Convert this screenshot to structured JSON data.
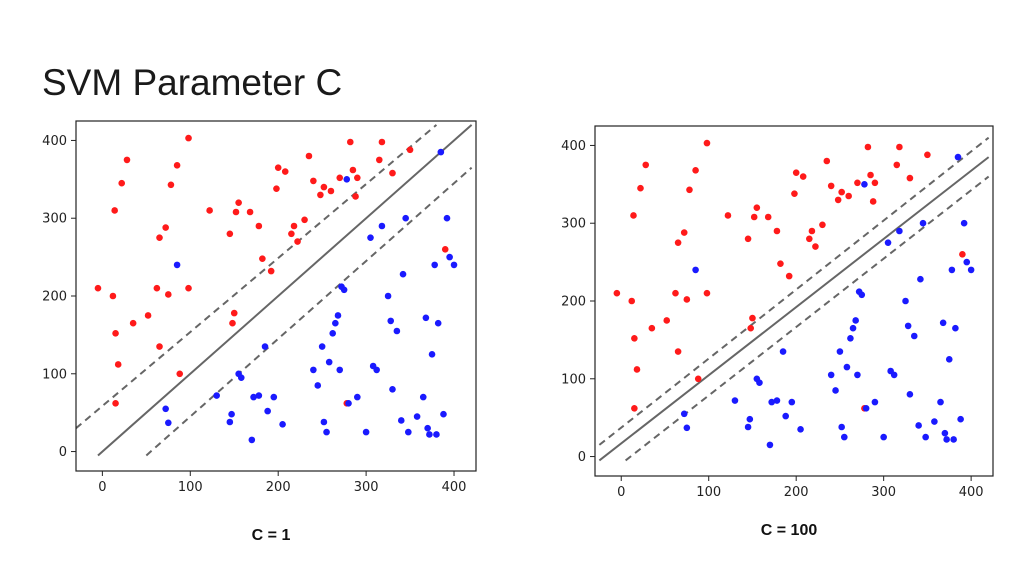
{
  "slide": {
    "title": "SVM Parameter C"
  },
  "colors": {
    "class_a": "#ff1a1a",
    "class_b": "#1a1aff",
    "line": "#666666",
    "frame": "#222222"
  },
  "chart_data": [
    {
      "type": "scatter",
      "caption": "C = 1",
      "xlim": [
        -30,
        425
      ],
      "ylim": [
        -25,
        425
      ],
      "xticks": [
        0,
        100,
        200,
        300,
        400
      ],
      "yticks": [
        0,
        100,
        200,
        300,
        400
      ],
      "grid": false,
      "series": [
        {
          "color": "#ff1a1a",
          "points": [
            [
              -5,
              210
            ],
            [
              12,
              200
            ],
            [
              15,
              152
            ],
            [
              18,
              112
            ],
            [
              15,
              62
            ],
            [
              14,
              310
            ],
            [
              22,
              345
            ],
            [
              28,
              375
            ],
            [
              35,
              165
            ],
            [
              52,
              175
            ],
            [
              62,
              210
            ],
            [
              65,
              275
            ],
            [
              65,
              135
            ],
            [
              72,
              288
            ],
            [
              78,
              343
            ],
            [
              85,
              368
            ],
            [
              75,
              202
            ],
            [
              98,
              403
            ],
            [
              98,
              210
            ],
            [
              88,
              100
            ],
            [
              122,
              310
            ],
            [
              145,
              280
            ],
            [
              148,
              165
            ],
            [
              150,
              178
            ],
            [
              152,
              308
            ],
            [
              155,
              320
            ],
            [
              168,
              308
            ],
            [
              178,
              290
            ],
            [
              182,
              248
            ],
            [
              192,
              232
            ],
            [
              198,
              338
            ],
            [
              200,
              365
            ],
            [
              208,
              360
            ],
            [
              215,
              280
            ],
            [
              218,
              290
            ],
            [
              222,
              270
            ],
            [
              230,
              298
            ],
            [
              235,
              380
            ],
            [
              240,
              348
            ],
            [
              248,
              330
            ],
            [
              252,
              340
            ],
            [
              260,
              335
            ],
            [
              270,
              352
            ],
            [
              282,
              398
            ],
            [
              285,
              362
            ],
            [
              288,
              328
            ],
            [
              290,
              352
            ],
            [
              315,
              375
            ],
            [
              318,
              398
            ],
            [
              330,
              358
            ],
            [
              350,
              388
            ],
            [
              390,
              260
            ],
            [
              278,
              62
            ]
          ]
        },
        {
          "color": "#1a1aff",
          "points": [
            [
              72,
              55
            ],
            [
              75,
              37
            ],
            [
              85,
              240
            ],
            [
              130,
              72
            ],
            [
              145,
              38
            ],
            [
              147,
              48
            ],
            [
              155,
              100
            ],
            [
              158,
              95
            ],
            [
              170,
              15
            ],
            [
              172,
              70
            ],
            [
              178,
              72
            ],
            [
              188,
              52
            ],
            [
              185,
              135
            ],
            [
              195,
              70
            ],
            [
              205,
              35
            ],
            [
              240,
              105
            ],
            [
              245,
              85
            ],
            [
              250,
              135
            ],
            [
              252,
              38
            ],
            [
              255,
              25
            ],
            [
              258,
              115
            ],
            [
              262,
              152
            ],
            [
              265,
              165
            ],
            [
              268,
              175
            ],
            [
              270,
              105
            ],
            [
              272,
              212
            ],
            [
              275,
              208
            ],
            [
              278,
              350
            ],
            [
              280,
              62
            ],
            [
              290,
              70
            ],
            [
              300,
              25
            ],
            [
              305,
              275
            ],
            [
              308,
              110
            ],
            [
              312,
              105
            ],
            [
              318,
              290
            ],
            [
              325,
              200
            ],
            [
              328,
              168
            ],
            [
              330,
              80
            ],
            [
              335,
              155
            ],
            [
              340,
              40
            ],
            [
              342,
              228
            ],
            [
              345,
              300
            ],
            [
              348,
              25
            ],
            [
              358,
              45
            ],
            [
              365,
              70
            ],
            [
              368,
              172
            ],
            [
              370,
              30
            ],
            [
              372,
              22
            ],
            [
              375,
              125
            ],
            [
              378,
              240
            ],
            [
              380,
              22
            ],
            [
              382,
              165
            ],
            [
              385,
              385
            ],
            [
              388,
              48
            ],
            [
              392,
              300
            ],
            [
              395,
              250
            ],
            [
              400,
              240
            ]
          ]
        }
      ],
      "lines": [
        {
          "style": "solid",
          "from": [
            -5,
            -5
          ],
          "to": [
            420,
            420
          ]
        },
        {
          "style": "dashed",
          "from": [
            -30,
            30
          ],
          "to": [
            380,
            420
          ]
        },
        {
          "style": "dashed",
          "from": [
            50,
            -5
          ],
          "to": [
            420,
            365
          ]
        }
      ]
    },
    {
      "type": "scatter",
      "caption": "C = 100",
      "xlim": [
        -30,
        425
      ],
      "ylim": [
        -25,
        425
      ],
      "xticks": [
        0,
        100,
        200,
        300,
        400
      ],
      "yticks": [
        0,
        100,
        200,
        300,
        400
      ],
      "grid": false,
      "series": [
        {
          "color": "#ff1a1a",
          "points": [
            [
              -5,
              210
            ],
            [
              12,
              200
            ],
            [
              15,
              152
            ],
            [
              18,
              112
            ],
            [
              15,
              62
            ],
            [
              14,
              310
            ],
            [
              22,
              345
            ],
            [
              28,
              375
            ],
            [
              35,
              165
            ],
            [
              52,
              175
            ],
            [
              62,
              210
            ],
            [
              65,
              275
            ],
            [
              65,
              135
            ],
            [
              72,
              288
            ],
            [
              78,
              343
            ],
            [
              85,
              368
            ],
            [
              75,
              202
            ],
            [
              98,
              403
            ],
            [
              98,
              210
            ],
            [
              88,
              100
            ],
            [
              122,
              310
            ],
            [
              145,
              280
            ],
            [
              148,
              165
            ],
            [
              150,
              178
            ],
            [
              152,
              308
            ],
            [
              155,
              320
            ],
            [
              168,
              308
            ],
            [
              178,
              290
            ],
            [
              182,
              248
            ],
            [
              192,
              232
            ],
            [
              198,
              338
            ],
            [
              200,
              365
            ],
            [
              208,
              360
            ],
            [
              215,
              280
            ],
            [
              218,
              290
            ],
            [
              222,
              270
            ],
            [
              230,
              298
            ],
            [
              235,
              380
            ],
            [
              240,
              348
            ],
            [
              248,
              330
            ],
            [
              252,
              340
            ],
            [
              260,
              335
            ],
            [
              270,
              352
            ],
            [
              282,
              398
            ],
            [
              285,
              362
            ],
            [
              288,
              328
            ],
            [
              290,
              352
            ],
            [
              315,
              375
            ],
            [
              318,
              398
            ],
            [
              330,
              358
            ],
            [
              350,
              388
            ],
            [
              390,
              260
            ],
            [
              278,
              62
            ]
          ]
        },
        {
          "color": "#1a1aff",
          "points": [
            [
              72,
              55
            ],
            [
              75,
              37
            ],
            [
              85,
              240
            ],
            [
              130,
              72
            ],
            [
              145,
              38
            ],
            [
              147,
              48
            ],
            [
              155,
              100
            ],
            [
              158,
              95
            ],
            [
              170,
              15
            ],
            [
              172,
              70
            ],
            [
              178,
              72
            ],
            [
              188,
              52
            ],
            [
              185,
              135
            ],
            [
              195,
              70
            ],
            [
              205,
              35
            ],
            [
              240,
              105
            ],
            [
              245,
              85
            ],
            [
              250,
              135
            ],
            [
              252,
              38
            ],
            [
              255,
              25
            ],
            [
              258,
              115
            ],
            [
              262,
              152
            ],
            [
              265,
              165
            ],
            [
              268,
              175
            ],
            [
              270,
              105
            ],
            [
              272,
              212
            ],
            [
              275,
              208
            ],
            [
              278,
              350
            ],
            [
              280,
              62
            ],
            [
              290,
              70
            ],
            [
              300,
              25
            ],
            [
              305,
              275
            ],
            [
              308,
              110
            ],
            [
              312,
              105
            ],
            [
              318,
              290
            ],
            [
              325,
              200
            ],
            [
              328,
              168
            ],
            [
              330,
              80
            ],
            [
              335,
              155
            ],
            [
              340,
              40
            ],
            [
              342,
              228
            ],
            [
              345,
              300
            ],
            [
              348,
              25
            ],
            [
              358,
              45
            ],
            [
              365,
              70
            ],
            [
              368,
              172
            ],
            [
              370,
              30
            ],
            [
              372,
              22
            ],
            [
              375,
              125
            ],
            [
              378,
              240
            ],
            [
              380,
              22
            ],
            [
              382,
              165
            ],
            [
              385,
              385
            ],
            [
              388,
              48
            ],
            [
              392,
              300
            ],
            [
              395,
              250
            ],
            [
              400,
              240
            ]
          ]
        }
      ],
      "lines": [
        {
          "style": "solid",
          "from": [
            -25,
            -5
          ],
          "to": [
            420,
            385
          ]
        },
        {
          "style": "dashed",
          "from": [
            -25,
            15
          ],
          "to": [
            420,
            410
          ]
        },
        {
          "style": "dashed",
          "from": [
            5,
            -5
          ],
          "to": [
            420,
            360
          ]
        }
      ]
    }
  ]
}
